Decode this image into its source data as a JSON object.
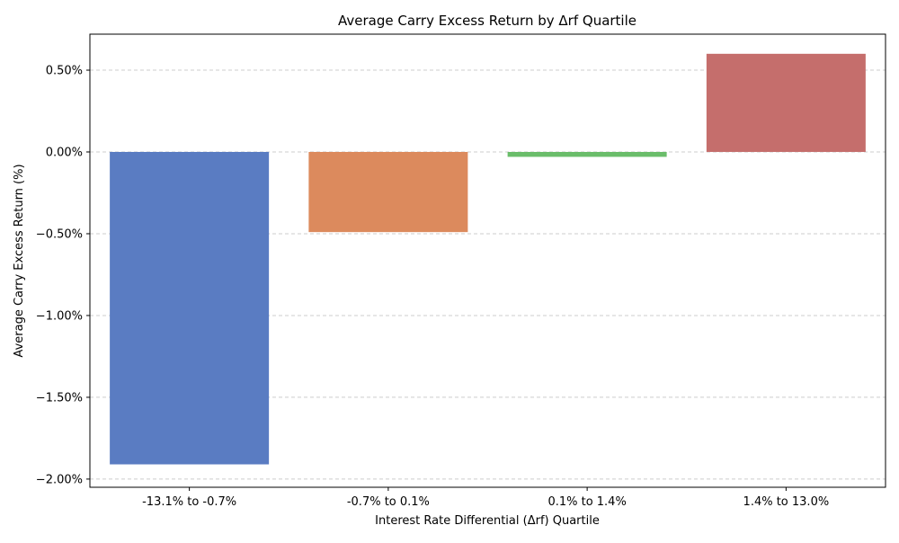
{
  "chart_data": {
    "type": "bar",
    "title": "Average Carry Excess Return by Δrf Quartile",
    "xlabel": "Interest Rate Differential (Δrf) Quartile",
    "ylabel": "Average Carry Excess Return (%)",
    "categories": [
      "-13.1% to -0.7%",
      "-0.7% to 0.1%",
      "0.1% to 1.4%",
      "1.4% to 13.0%"
    ],
    "values": [
      -1.91,
      -0.49,
      -0.03,
      0.6
    ],
    "colors": [
      "#5a7cc2",
      "#dc8a5d",
      "#6abd6a",
      "#c56e6c"
    ],
    "ylim": [
      -2.05,
      0.72
    ],
    "yticks": [
      0.5,
      0.0,
      -0.5,
      -1.0,
      -1.5,
      -2.0
    ],
    "ytick_labels": [
      "0.50%",
      "0.00%",
      "−0.50%",
      "−1.00%",
      "−1.50%",
      "−2.00%"
    ],
    "grid": "horizontal dashed",
    "legend": "none"
  }
}
